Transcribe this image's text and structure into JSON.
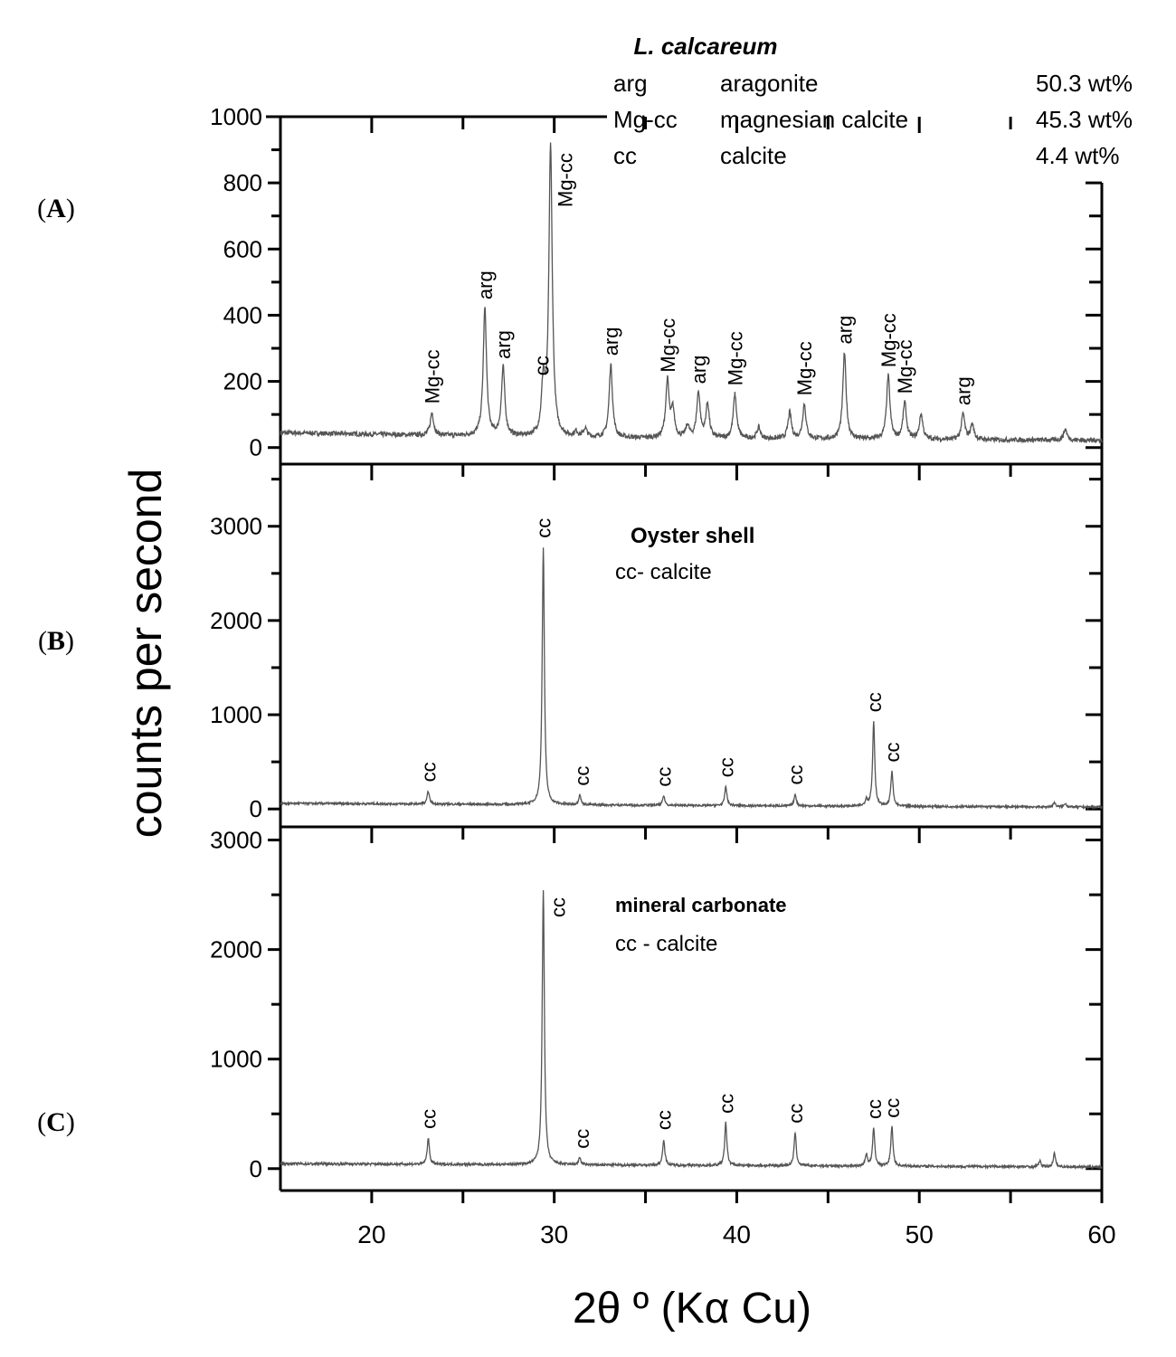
{
  "chart_data": {
    "type": "line",
    "xlabel": "2θ º (Kα Cu)",
    "ylabel": "counts per second",
    "xlim": [
      15,
      60
    ],
    "xticks": [
      20,
      30,
      40,
      50,
      60
    ],
    "line_color": "#555555",
    "panels": [
      {
        "panel_label": "A",
        "ylim": [
          -50,
          1000
        ],
        "yticks": [
          0,
          200,
          400,
          600,
          800,
          1000
        ],
        "legend": {
          "title": "L. calcareum",
          "rows": [
            {
              "abbr": "arg",
              "name": "aragonite",
              "value": "50.3 wt%"
            },
            {
              "abbr": "Mg-cc",
              "name": "magnesian calcite",
              "value": "45.3 wt%"
            },
            {
              "abbr": "cc",
              "name": "calcite",
              "value": "4.4 wt%"
            }
          ]
        },
        "baseline": [
          [
            15,
            45
          ],
          [
            30,
            30
          ],
          [
            45,
            25
          ],
          [
            60,
            22
          ]
        ],
        "peaks": [
          [
            23.3,
            105
          ],
          [
            26.2,
            420
          ],
          [
            27.2,
            240
          ],
          [
            29.4,
            185
          ],
          [
            29.8,
            910
          ],
          [
            31.2,
            45
          ],
          [
            31.7,
            55
          ],
          [
            33.1,
            250
          ],
          [
            36.2,
            200
          ],
          [
            36.5,
            110
          ],
          [
            37.3,
            65
          ],
          [
            37.9,
            165
          ],
          [
            38.4,
            130
          ],
          [
            39.9,
            160
          ],
          [
            41.2,
            60
          ],
          [
            42.9,
            105
          ],
          [
            43.7,
            130
          ],
          [
            45.9,
            285
          ],
          [
            48.3,
            215
          ],
          [
            49.2,
            135
          ],
          [
            50.1,
            100
          ],
          [
            52.4,
            100
          ],
          [
            52.9,
            70
          ],
          [
            58.0,
            55
          ]
        ],
        "labels": [
          {
            "text": "Mg-cc",
            "x": 23.3,
            "y": 105
          },
          {
            "text": "arg",
            "x": 26.2,
            "y": 420
          },
          {
            "text": "arg",
            "x": 27.2,
            "y": 240
          },
          {
            "text": "cc",
            "x": 29.3,
            "y": 190
          },
          {
            "text": "Mg-cc",
            "x": 29.8,
            "y": 910
          },
          {
            "text": "arg",
            "x": 33.1,
            "y": 250
          },
          {
            "text": "Mg-cc",
            "x": 36.2,
            "y": 200
          },
          {
            "text": "arg",
            "x": 37.9,
            "y": 165
          },
          {
            "text": "Mg-cc",
            "x": 39.9,
            "y": 160
          },
          {
            "text": "Mg-cc",
            "x": 43.7,
            "y": 130
          },
          {
            "text": "arg",
            "x": 45.9,
            "y": 285
          },
          {
            "text": "Mg-cc",
            "x": 48.3,
            "y": 215
          },
          {
            "text": "Mg-cc",
            "x": 49.2,
            "y": 135
          },
          {
            "text": "arg",
            "x": 52.4,
            "y": 100
          }
        ]
      },
      {
        "panel_label": "B",
        "ylim": [
          -190,
          3660
        ],
        "yticks": [
          0,
          1000,
          2000,
          3000
        ],
        "annotation": {
          "title": "Oyster shell",
          "subtitle": "cc- calcite"
        },
        "baseline": [
          [
            15,
            60
          ],
          [
            30,
            45
          ],
          [
            45,
            30
          ],
          [
            60,
            20
          ]
        ],
        "peaks": [
          [
            23.1,
            190
          ],
          [
            29.4,
            2780
          ],
          [
            31.4,
            150
          ],
          [
            36.0,
            140
          ],
          [
            39.4,
            240
          ],
          [
            43.2,
            160
          ],
          [
            47.1,
            100
          ],
          [
            47.5,
            930
          ],
          [
            48.5,
            400
          ],
          [
            57.4,
            70
          ],
          [
            58.0,
            60
          ]
        ],
        "labels": [
          {
            "text": "cc",
            "x": 23.1,
            "y": 190
          },
          {
            "text": "cc",
            "x": 29.4,
            "y": 2780
          },
          {
            "text": "cc",
            "x": 31.5,
            "y": 150
          },
          {
            "text": "cc",
            "x": 36.0,
            "y": 140
          },
          {
            "text": "cc",
            "x": 39.4,
            "y": 240
          },
          {
            "text": "cc",
            "x": 43.2,
            "y": 160
          },
          {
            "text": "cc",
            "x": 47.5,
            "y": 930
          },
          {
            "text": "cc",
            "x": 48.5,
            "y": 400
          }
        ]
      },
      {
        "panel_label": "C",
        "ylim": [
          -200,
          3120
        ],
        "yticks": [
          0,
          1000,
          2000,
          3000
        ],
        "annotation": {
          "title": "mineral carbonate",
          "subtitle": "cc - calcite"
        },
        "baseline": [
          [
            15,
            45
          ],
          [
            30,
            35
          ],
          [
            45,
            25
          ],
          [
            60,
            15
          ]
        ],
        "peaks": [
          [
            23.1,
            280
          ],
          [
            29.4,
            2550
          ],
          [
            31.4,
            100
          ],
          [
            36.0,
            270
          ],
          [
            39.4,
            420
          ],
          [
            43.2,
            330
          ],
          [
            47.1,
            130
          ],
          [
            47.5,
            370
          ],
          [
            48.5,
            380
          ],
          [
            56.6,
            70
          ],
          [
            57.4,
            140
          ]
        ],
        "labels": [
          {
            "text": "cc",
            "x": 23.1,
            "y": 280
          },
          {
            "text": "cc",
            "x": 29.4,
            "y": 2550
          },
          {
            "text": "cc",
            "x": 31.5,
            "y": 100
          },
          {
            "text": "cc",
            "x": 36.0,
            "y": 270
          },
          {
            "text": "cc",
            "x": 39.4,
            "y": 420
          },
          {
            "text": "cc",
            "x": 43.2,
            "y": 330
          },
          {
            "text": "cc",
            "x": 47.5,
            "y": 370
          },
          {
            "text": "cc",
            "x": 48.5,
            "y": 380
          }
        ]
      }
    ]
  }
}
